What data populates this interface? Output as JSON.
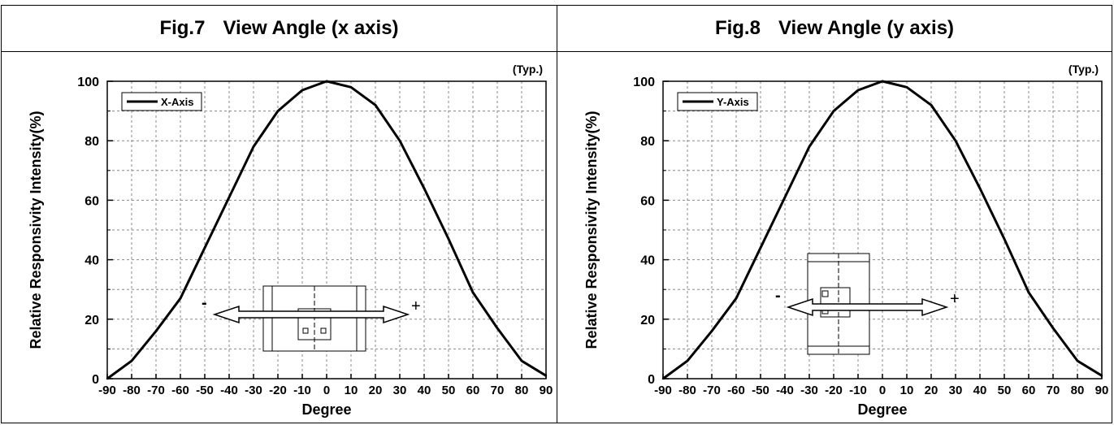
{
  "figures": [
    {
      "fig_label": "Fig.7",
      "title": "View Angle (x axis)",
      "typ_label": "(Typ.)",
      "legend": "X-Axis",
      "xlabel": "Degree",
      "ylabel": "Relative Responsivity Intensity(%)",
      "plus_sign": "+",
      "minus_sign": "-",
      "arrow_direction": "horizontal"
    },
    {
      "fig_label": "Fig.8",
      "title": "View Angle (y axis)",
      "typ_label": "(Typ.)",
      "legend": "Y-Axis",
      "xlabel": "Degree",
      "ylabel": "Relative Responsivity Intensity(%)",
      "plus_sign": "+",
      "minus_sign": "-",
      "arrow_direction": "horizontal"
    }
  ],
  "chart_data": [
    {
      "type": "line",
      "title": "View Angle (x axis)",
      "xlabel": "Degree",
      "ylabel": "Relative Responsivity Intensity(%)",
      "xlim": [
        -90,
        90
      ],
      "ylim": [
        0,
        100
      ],
      "xticks": [
        -90,
        -80,
        -70,
        -60,
        -50,
        -40,
        -30,
        -20,
        -10,
        0,
        10,
        20,
        30,
        40,
        50,
        60,
        70,
        80,
        90
      ],
      "yticks": [
        0,
        20,
        40,
        60,
        80,
        100
      ],
      "grid": true,
      "legend_position": "top-left",
      "series": [
        {
          "name": "X-Axis",
          "x": [
            -90,
            -80,
            -70,
            -60,
            -50,
            -40,
            -30,
            -20,
            -10,
            0,
            10,
            20,
            30,
            40,
            50,
            60,
            70,
            80,
            90
          ],
          "y": [
            0,
            6,
            16,
            27,
            44,
            61,
            78,
            90,
            97,
            100,
            98,
            92,
            80,
            64,
            47,
            29,
            17,
            6,
            1
          ]
        }
      ]
    },
    {
      "type": "line",
      "title": "View Angle (y axis)",
      "xlabel": "Degree",
      "ylabel": "Relative Responsivity Intensity(%)",
      "xlim": [
        -90,
        90
      ],
      "ylim": [
        0,
        100
      ],
      "xticks": [
        -90,
        -80,
        -70,
        -60,
        -50,
        -40,
        -30,
        -20,
        -10,
        0,
        10,
        20,
        30,
        40,
        50,
        60,
        70,
        80,
        90
      ],
      "yticks": [
        0,
        20,
        40,
        60,
        80,
        100
      ],
      "grid": true,
      "legend_position": "top-left",
      "series": [
        {
          "name": "Y-Axis",
          "x": [
            -90,
            -80,
            -70,
            -60,
            -50,
            -40,
            -30,
            -20,
            -10,
            0,
            10,
            20,
            30,
            40,
            50,
            60,
            70,
            80,
            90
          ],
          "y": [
            0,
            6,
            16,
            27,
            44,
            61,
            78,
            90,
            97,
            100,
            98,
            92,
            80,
            64,
            47,
            29,
            17,
            6,
            1
          ]
        }
      ]
    }
  ]
}
